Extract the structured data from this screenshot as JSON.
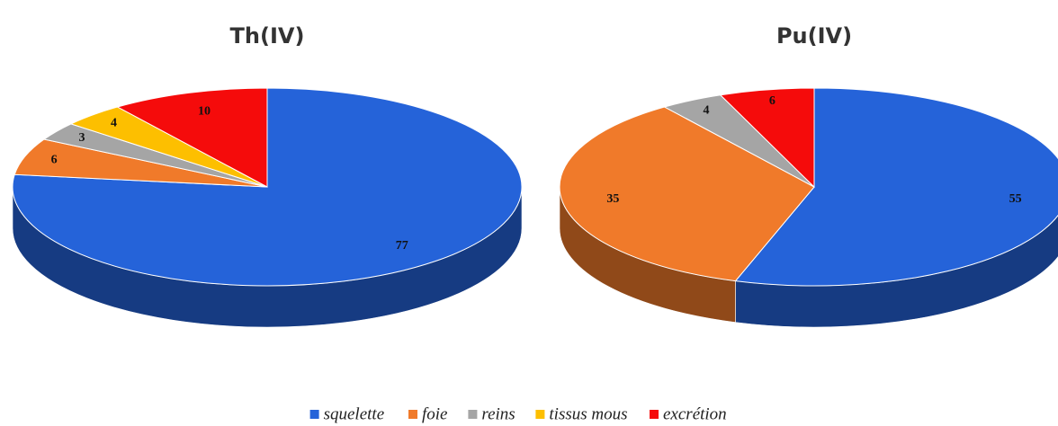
{
  "chart_data": [
    {
      "type": "pie",
      "title": "Th(IV)",
      "categories": [
        "squelette",
        "foie",
        "reins",
        "tissus mous",
        "excrétion"
      ],
      "values": [
        77,
        6,
        3,
        4,
        10
      ],
      "colors": [
        "#2563d9",
        "#f07a2a",
        "#a5a5a5",
        "#fdbf00",
        "#f50b0b"
      ]
    },
    {
      "type": "pie",
      "title": "Pu(IV)",
      "categories": [
        "squelette",
        "foie",
        "reins",
        "excrétion"
      ],
      "values": [
        55,
        35,
        4,
        6
      ],
      "colors": [
        "#2563d9",
        "#f07a2a",
        "#a5a5a5",
        "#f50b0b"
      ]
    }
  ]
}
